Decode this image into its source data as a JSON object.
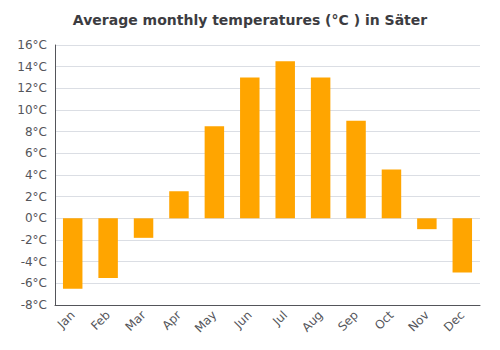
{
  "chart_data": {
    "type": "bar",
    "title": "Average monthly temperatures (°C ) in Säter",
    "categories": [
      "Jan",
      "Feb",
      "Mar",
      "Apr",
      "May",
      "Jun",
      "Jul",
      "Aug",
      "Sep",
      "Oct",
      "Nov",
      "Dec"
    ],
    "values": [
      -6.5,
      -5.5,
      -1.8,
      2.5,
      8.5,
      13.0,
      14.5,
      13.0,
      9.0,
      4.5,
      -1.0,
      -5.0
    ],
    "color": "#FFA500",
    "ylim": [
      -8,
      16
    ],
    "yticks": [
      {
        "value": -8,
        "label": "-8°C"
      },
      {
        "value": -6,
        "label": "-6°C"
      },
      {
        "value": -4,
        "label": "-4°C"
      },
      {
        "value": -2,
        "label": "-2°C"
      },
      {
        "value": 0,
        "label": "0°C"
      },
      {
        "value": 2,
        "label": "2°C"
      },
      {
        "value": 4,
        "label": "4°C"
      },
      {
        "value": 6,
        "label": "6°C"
      },
      {
        "value": 8,
        "label": "8°C"
      },
      {
        "value": 10,
        "label": "10°C"
      },
      {
        "value": 12,
        "label": "12°C"
      },
      {
        "value": 14,
        "label": "14°C"
      },
      {
        "value": 16,
        "label": "16°C"
      }
    ],
    "grid": true
  }
}
